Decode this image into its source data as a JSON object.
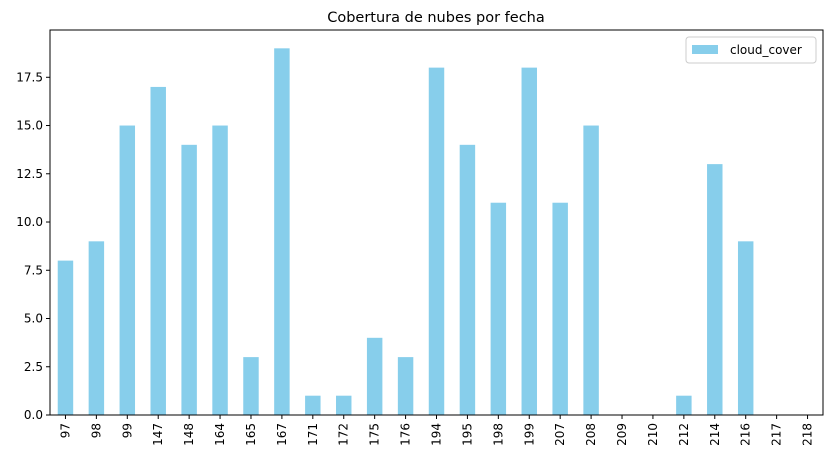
{
  "chart_data": {
    "type": "bar",
    "title": "Cobertura de nubes por fecha",
    "xlabel": "",
    "ylabel": "",
    "categories": [
      "97",
      "98",
      "99",
      "147",
      "148",
      "164",
      "165",
      "167",
      "171",
      "172",
      "175",
      "176",
      "194",
      "195",
      "198",
      "199",
      "207",
      "208",
      "209",
      "210",
      "212",
      "214",
      "216",
      "217",
      "218"
    ],
    "series": [
      {
        "name": "cloud_cover",
        "values": [
          8,
          9,
          15,
          17,
          14,
          15,
          3,
          19,
          1,
          1,
          4,
          3,
          18,
          14,
          11,
          18,
          11,
          15,
          0,
          0,
          1,
          13,
          9,
          0,
          0
        ],
        "color": "#87ceeb"
      }
    ],
    "ylim": [
      0,
      19.95
    ],
    "yticks": [
      "0.0",
      "2.5",
      "5.0",
      "7.5",
      "10.0",
      "12.5",
      "15.0",
      "17.5"
    ],
    "grid": false,
    "legend_position": "top-right"
  }
}
